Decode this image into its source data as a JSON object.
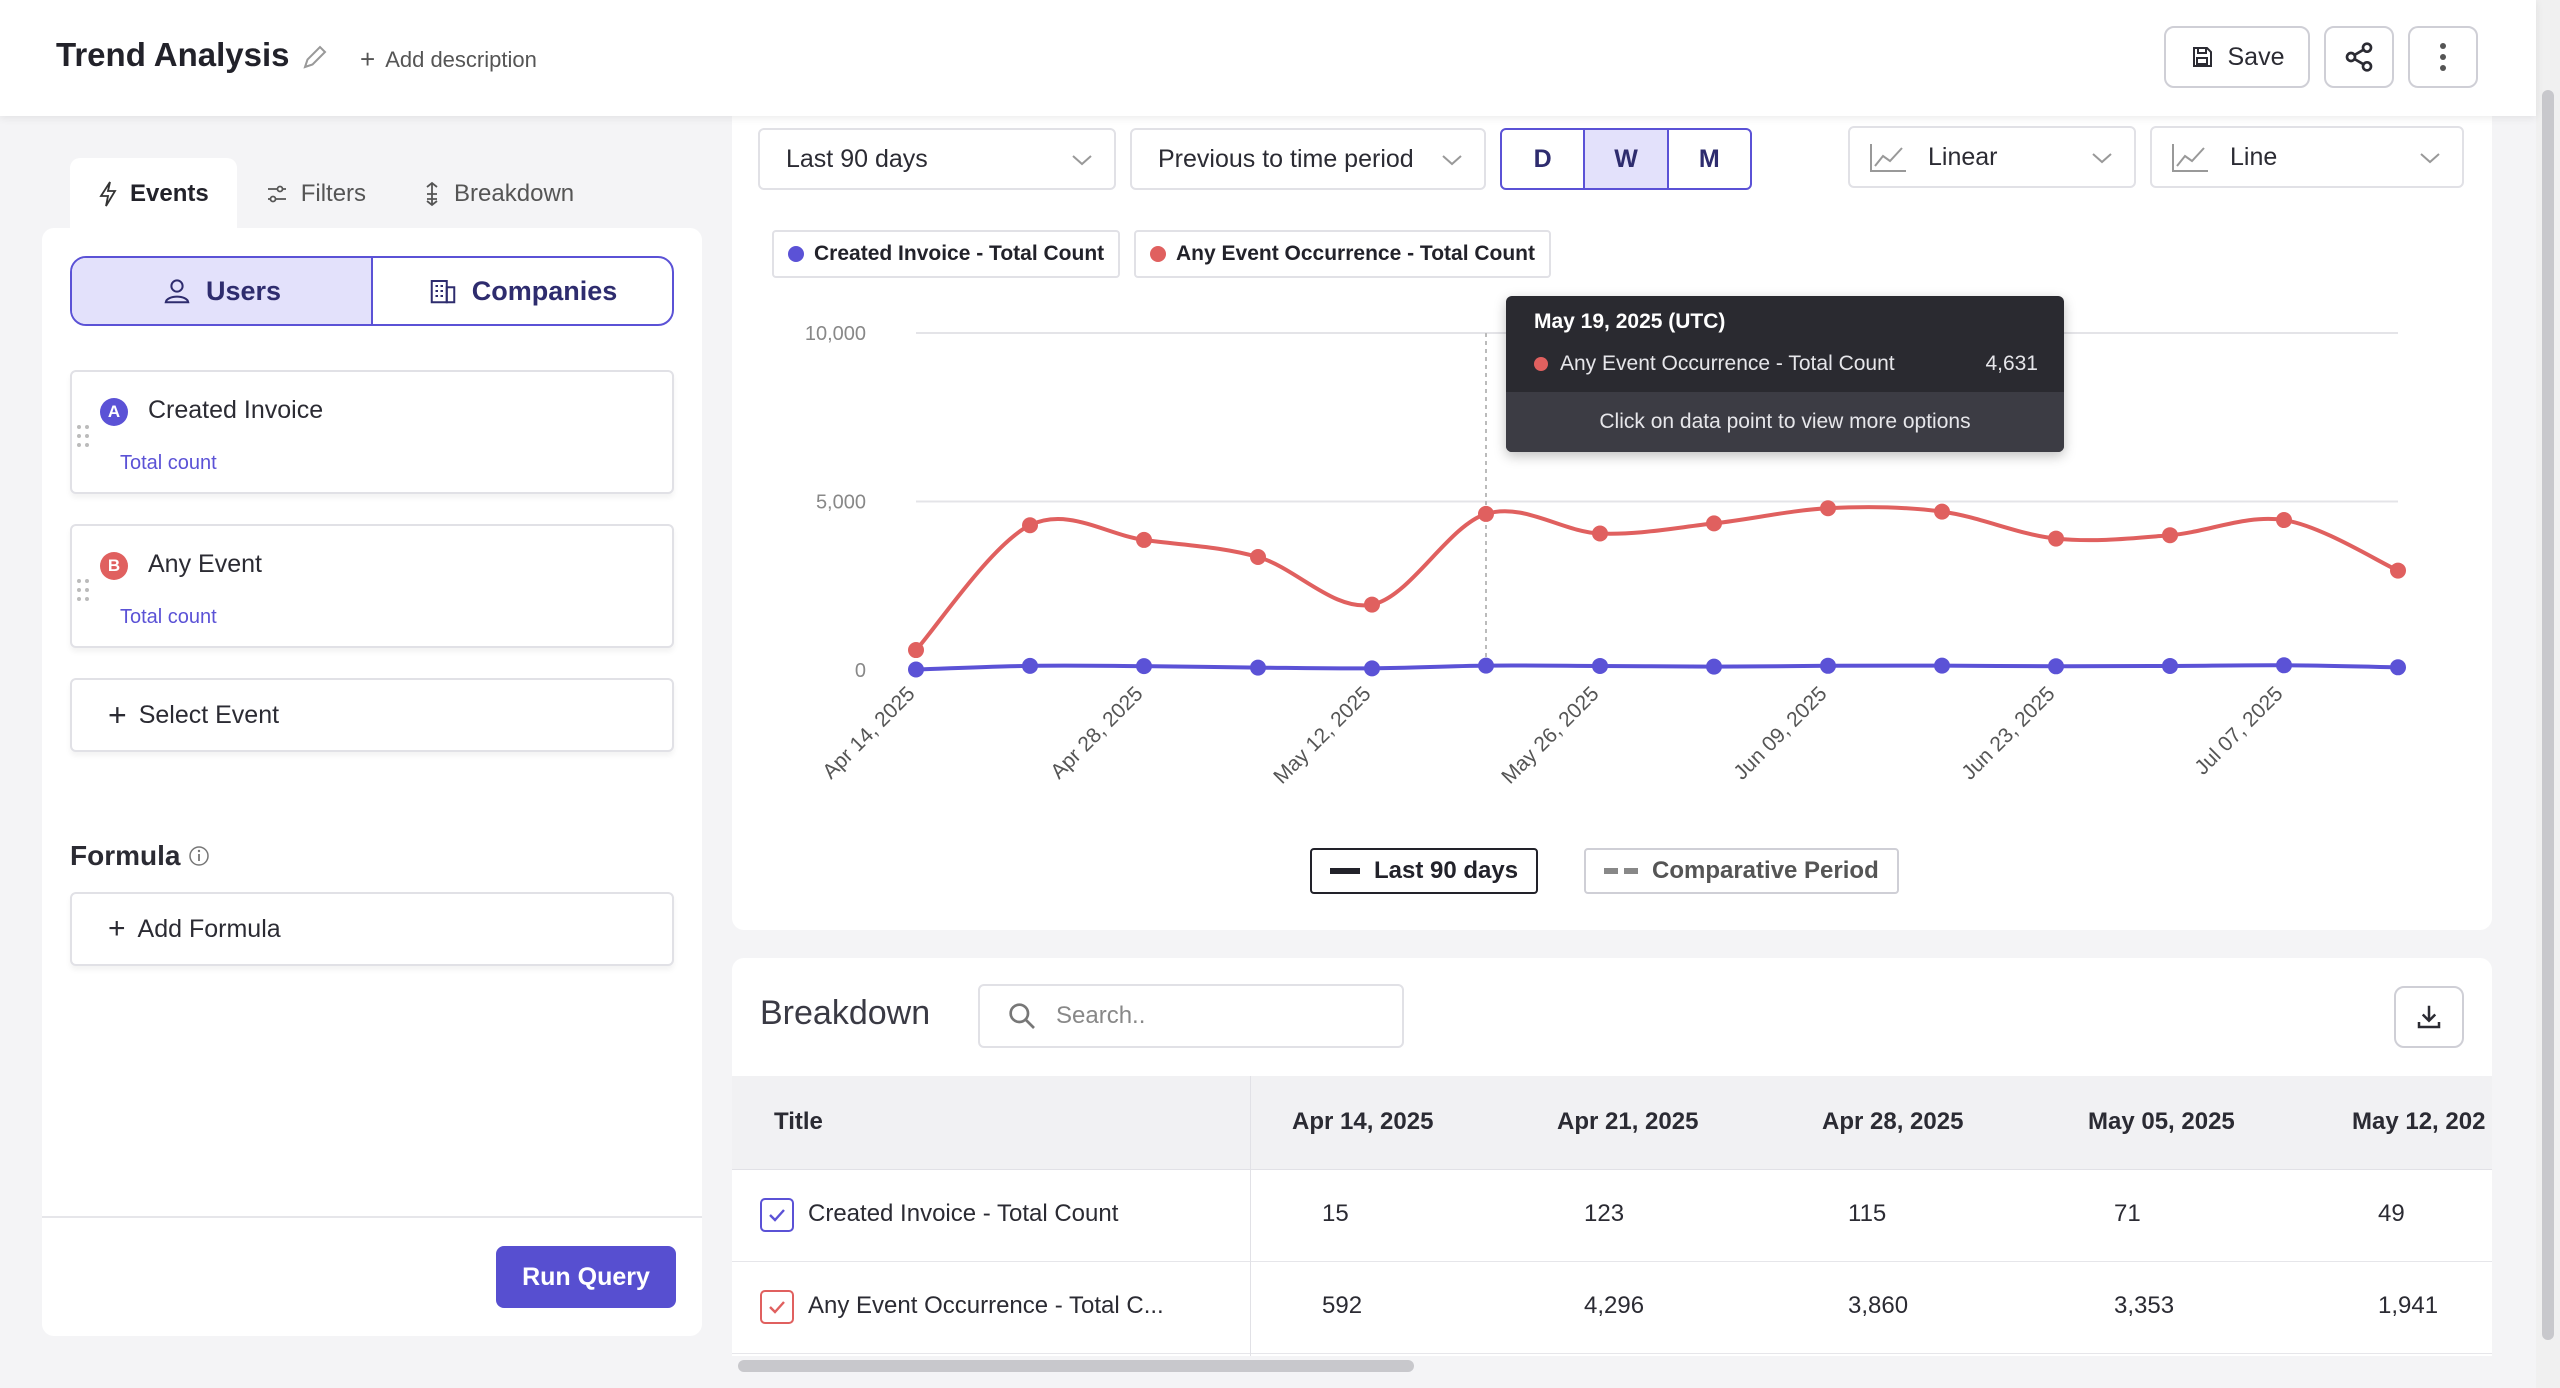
{
  "header": {
    "title": "Trend Analysis",
    "add_description": "Add description",
    "save_label": "Save"
  },
  "left": {
    "tabs": [
      {
        "label": "Events",
        "active": true
      },
      {
        "label": "Filters",
        "active": false
      },
      {
        "label": "Breakdown",
        "active": false
      }
    ],
    "segment": {
      "users": "Users",
      "companies": "Companies",
      "selected": "Users"
    },
    "events": [
      {
        "badge": "A",
        "name": "Created Invoice",
        "metric": "Total count",
        "color": "#5b52d6"
      },
      {
        "badge": "B",
        "name": "Any Event",
        "metric": "Total count",
        "color": "#e0605f"
      }
    ],
    "select_event": "Select Event",
    "formula_label": "Formula",
    "add_formula": "Add Formula",
    "run_query": "Run Query"
  },
  "controls": {
    "date_range": "Last 90 days",
    "compare": "Previous to time period",
    "granularity": [
      "D",
      "W",
      "M"
    ],
    "granularity_selected": "W",
    "scale": "Linear",
    "chart_type": "Line"
  },
  "legend": {
    "series_a": "Created Invoice - Total Count",
    "series_b": "Any Event Occurrence - Total Count",
    "period_current": "Last 90 days",
    "period_compare": "Comparative Period"
  },
  "tooltip": {
    "date": "May 19, 2025 (UTC)",
    "series": "Any Event Occurrence - Total Count",
    "value": "4,631",
    "hint": "Click on data point to view more options"
  },
  "chart_data": {
    "type": "line",
    "x": [
      "2025-04-14",
      "2025-04-21",
      "2025-04-28",
      "2025-05-05",
      "2025-05-12",
      "2025-05-19",
      "2025-05-26",
      "2025-06-02",
      "2025-06-09",
      "2025-06-16",
      "2025-06-23",
      "2025-06-30",
      "2025-07-07",
      "2025-07-14"
    ],
    "x_tick_labels": [
      "Apr 14, 2025",
      "Apr 28, 2025",
      "May 12, 2025",
      "May 26, 2025",
      "Jun 09, 2025",
      "Jun 23, 2025",
      "Jul 07, 2025"
    ],
    "y_ticks": [
      "10,000",
      "5,000",
      "0"
    ],
    "ylim": [
      0,
      10000
    ],
    "series": [
      {
        "name": "Created Invoice - Total Count",
        "color": "#5b52d6",
        "values": [
          15,
          123,
          115,
          71,
          49,
          130,
          120,
          100,
          125,
          130,
          110,
          120,
          140,
          80
        ]
      },
      {
        "name": "Any Event Occurrence - Total Count",
        "color": "#e0605f",
        "values": [
          592,
          4296,
          3860,
          3353,
          1941,
          4631,
          4050,
          4350,
          4800,
          4700,
          3900,
          4000,
          4450,
          2950
        ]
      }
    ],
    "grid": true
  },
  "breakdown": {
    "title": "Breakdown",
    "search_placeholder": "Search..",
    "columns": [
      "Title",
      "Apr 14, 2025",
      "Apr 21, 2025",
      "Apr 28, 2025",
      "May 05, 2025",
      "May 12, 202"
    ],
    "rows": [
      {
        "title": "Created Invoice - Total Count",
        "values": [
          "15",
          "123",
          "115",
          "71",
          "49"
        ],
        "color": "#5b52d6"
      },
      {
        "title": "Any Event Occurrence - Total C...",
        "values": [
          "592",
          "4,296",
          "3,860",
          "3,353",
          "1,941"
        ],
        "color": "#e0605f"
      }
    ]
  }
}
